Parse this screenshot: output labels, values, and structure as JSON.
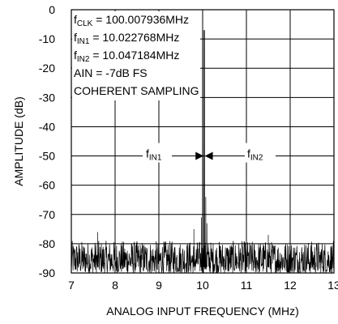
{
  "chart_data": {
    "type": "line",
    "title": "",
    "xlabel": "ANALOG INPUT FREQUENCY (MHz)",
    "ylabel": "AMPLITUDE (dB)",
    "xlim": [
      7,
      13
    ],
    "ylim": [
      -90,
      0
    ],
    "x_ticks": [
      "7",
      "8",
      "9",
      "10",
      "11",
      "12",
      "13"
    ],
    "y_ticks": [
      "0",
      "-10",
      "-20",
      "-30",
      "-40",
      "-50",
      "-60",
      "-70",
      "-80",
      "-90"
    ],
    "grid": true,
    "annotations": {
      "fclk": {
        "base": "f",
        "sub": "CLK",
        "text": " = 100.007936MHz"
      },
      "fin1": {
        "base": "f",
        "sub": "IN1",
        "text": " = 10.022768MHz"
      },
      "fin2": {
        "base": "f",
        "sub": "IN2",
        "text": " = 10.047184MHz"
      },
      "ain": "AIN = -7dB FS",
      "sampling": "COHERENT SAMPLING",
      "tone1_label": {
        "base": "f",
        "sub": "IN1"
      },
      "tone2_label": {
        "base": "f",
        "sub": "IN2"
      }
    },
    "series": [
      {
        "peaks": [
          {
            "x": 10.022768,
            "y": -7
          },
          {
            "x": 10.047184,
            "y": -7
          }
        ],
        "noise_floor_db": [
          -90,
          -79
        ],
        "spurs": [
          {
            "x": 9.998,
            "y": -64
          },
          {
            "x": 10.072,
            "y": -64
          },
          {
            "x": 9.973,
            "y": -71
          },
          {
            "x": 10.097,
            "y": -73
          },
          {
            "x": 9.8,
            "y": -75
          },
          {
            "x": 7.6,
            "y": -76
          },
          {
            "x": 11.5,
            "y": -77
          }
        ]
      }
    ]
  }
}
